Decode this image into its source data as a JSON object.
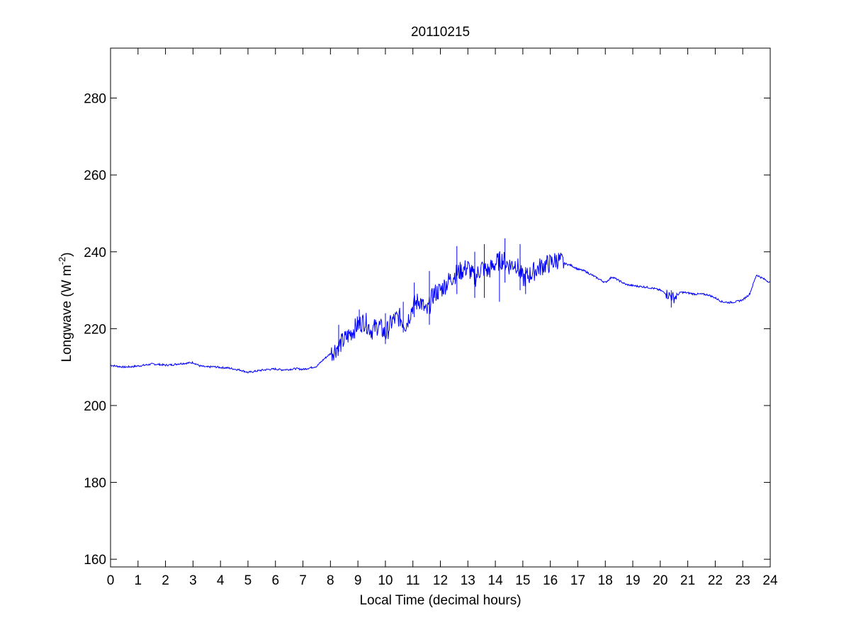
{
  "chart_data": {
    "type": "line",
    "title": "20110215",
    "xlabel": "Local Time (decimal hours)",
    "ylabel": "Longwave (W m",
    "ylabel_sup": "-2",
    "ylabel_close": ")",
    "xlim": [
      0,
      24
    ],
    "ylim": [
      158,
      293
    ],
    "xticks": [
      0,
      1,
      2,
      3,
      4,
      5,
      6,
      7,
      8,
      9,
      10,
      11,
      12,
      13,
      14,
      15,
      16,
      17,
      18,
      19,
      20,
      21,
      22,
      23,
      24
    ],
    "xtick_labels": [
      "0",
      "1",
      "2",
      "3",
      "4",
      "5",
      "6",
      "7",
      "8",
      "9",
      "10",
      "11",
      "12",
      "13",
      "14",
      "15",
      "16",
      "17",
      "18",
      "19",
      "20",
      "21",
      "22",
      "23",
      "24"
    ],
    "yticks": [
      160,
      180,
      200,
      220,
      240,
      260,
      280
    ],
    "ytick_labels": [
      "160",
      "180",
      "200",
      "220",
      "240",
      "260",
      "280"
    ],
    "grid": false,
    "line_color": "#0000ff",
    "series": [
      {
        "x": [
          0,
          0.25,
          0.5,
          0.75,
          1.0,
          1.25,
          1.5,
          1.75,
          2.0,
          2.25,
          2.5,
          2.75,
          3.0,
          3.25,
          3.5,
          3.75,
          4.0,
          4.25,
          4.5,
          4.75,
          5.0,
          5.25,
          5.5,
          5.75,
          6.0,
          6.25,
          6.5,
          6.75,
          7.0,
          7.25,
          7.5,
          7.75,
          8.0,
          8.25,
          8.5,
          8.75,
          9.0,
          9.25,
          9.5,
          9.75,
          10.0,
          10.25,
          10.5,
          10.75,
          11.0,
          11.25,
          11.5,
          11.75,
          12.0,
          12.25,
          12.5,
          12.75,
          13.0,
          13.25,
          13.5,
          13.75,
          14.0,
          14.25,
          14.5,
          14.75,
          15.0,
          15.25,
          15.5,
          15.75,
          16.0,
          16.25,
          16.5,
          16.75,
          17.0,
          17.25,
          17.5,
          17.75,
          18.0,
          18.25,
          18.5,
          18.75,
          19.0,
          19.25,
          19.5,
          19.75,
          20.0,
          20.25,
          20.5,
          20.75,
          21.0,
          21.25,
          21.5,
          21.75,
          22.0,
          22.25,
          22.5,
          22.75,
          23.0,
          23.25,
          23.5,
          23.75,
          24.0
        ],
        "values": [
          210.5,
          210.2,
          210.0,
          210.1,
          210.3,
          210.5,
          210.8,
          210.7,
          210.5,
          210.6,
          210.9,
          211.0,
          211.2,
          210.3,
          210.0,
          210.1,
          209.9,
          209.8,
          209.5,
          209.2,
          208.6,
          208.9,
          209.2,
          209.4,
          209.5,
          209.3,
          209.4,
          209.6,
          209.4,
          209.8,
          210.2,
          212.0,
          213.5,
          215.2,
          217.0,
          219.0,
          221.0,
          222.0,
          219.5,
          221.0,
          218.5,
          222.0,
          223.0,
          221.0,
          226.0,
          227.5,
          224.0,
          229.0,
          230.0,
          232.0,
          234.0,
          235.0,
          236.0,
          233.0,
          236.0,
          235.0,
          237.0,
          238.0,
          236.5,
          237.0,
          233.0,
          234.0,
          235.5,
          236.5,
          237.0,
          238.0,
          237.0,
          236.5,
          235.5,
          235.0,
          234.0,
          233.0,
          232.0,
          233.5,
          232.5,
          231.5,
          231.2,
          231.0,
          230.8,
          230.5,
          230.0,
          229.0,
          228.0,
          229.5,
          229.3,
          229.0,
          229.0,
          228.8,
          228.0,
          227.0,
          226.8,
          227.0,
          227.5,
          229.0,
          234.0,
          233.0,
          232.0
        ]
      },
      {
        "x": [
          8.3,
          8.3,
          9.05,
          9.05,
          10.0,
          10.0,
          10.65,
          10.65,
          11.05,
          11.05,
          11.6,
          11.6,
          12.6,
          12.6,
          13.25,
          13.25,
          13.6,
          13.6,
          14.15,
          14.15,
          14.35,
          14.35,
          14.9,
          14.9,
          15.1,
          15.1,
          20.4,
          20.4
        ],
        "values": [
          214,
          221,
          220,
          225,
          216,
          224,
          219,
          227,
          223,
          232,
          221,
          235,
          229,
          241.5,
          228,
          240,
          228,
          242,
          227,
          240,
          232,
          243.5,
          230,
          242,
          229,
          236,
          225.5,
          230
        ]
      }
    ]
  }
}
